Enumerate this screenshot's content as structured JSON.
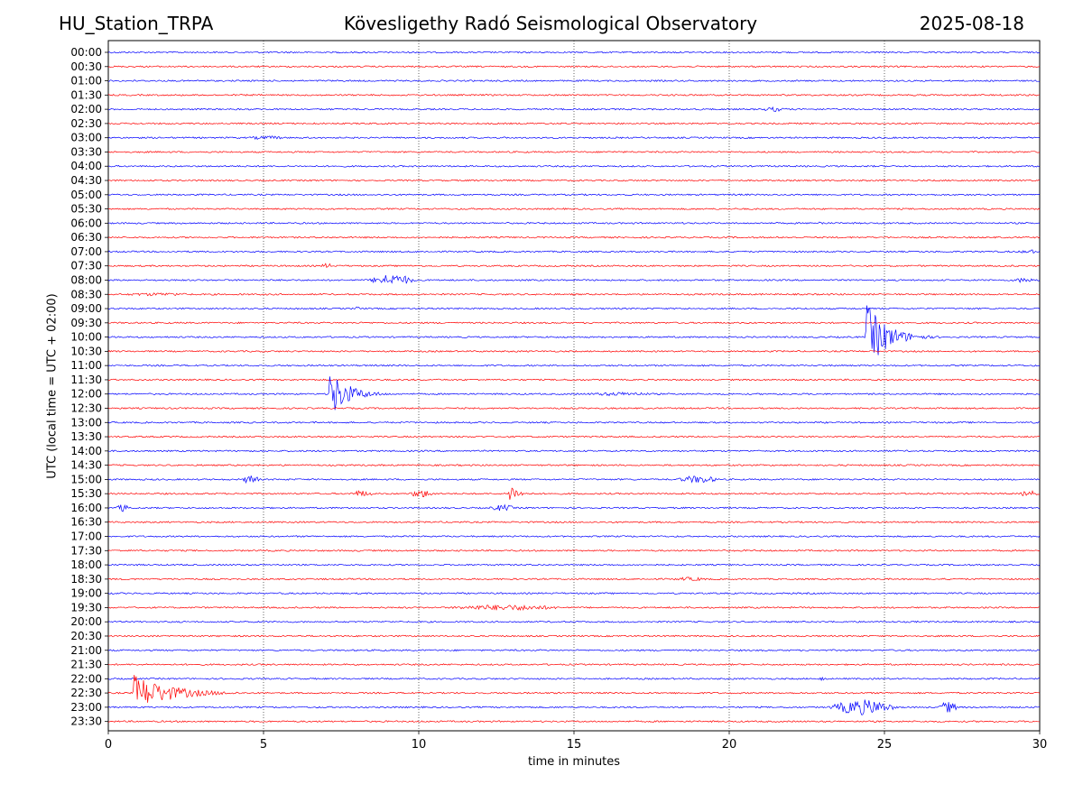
{
  "header": {
    "station": "HU_Station_TRPA",
    "title": "Kövesligethy Radó Seismological Observatory",
    "date": "2025-08-18"
  },
  "chart_data": {
    "type": "line",
    "title": "Kövesligethy Radó Seismological Observatory",
    "xlabel": "time in minutes",
    "ylabel": "UTC (local time = UTC + 02:00)",
    "xlim": [
      0,
      30
    ],
    "x_ticks": [
      "0",
      "5",
      "10",
      "15",
      "20",
      "25",
      "30"
    ],
    "grid": "vertical dotted at 5-minute intervals",
    "row_labels": [
      "00:00",
      "00:30",
      "01:00",
      "01:30",
      "02:00",
      "02:30",
      "03:00",
      "03:30",
      "04:00",
      "04:30",
      "05:00",
      "05:30",
      "06:00",
      "06:30",
      "07:00",
      "07:30",
      "08:00",
      "08:30",
      "09:00",
      "09:30",
      "10:00",
      "10:30",
      "11:00",
      "11:30",
      "12:00",
      "12:30",
      "13:00",
      "13:30",
      "14:00",
      "14:30",
      "15:00",
      "15:30",
      "16:00",
      "16:30",
      "17:00",
      "17:30",
      "18:00",
      "18:30",
      "19:00",
      "19:30",
      "20:00",
      "20:30",
      "21:00",
      "21:30",
      "22:00",
      "22:30",
      "23:00",
      "23:30"
    ],
    "row_colors": [
      "#0000ff",
      "#ff0000"
    ],
    "events": [
      {
        "row": "02:00",
        "start": 20.9,
        "end": 22.0,
        "amp": 0.35
      },
      {
        "row": "03:00",
        "start": 4.3,
        "end": 5.9,
        "amp": 0.3
      },
      {
        "row": "06:00",
        "start": 22.8,
        "end": 23.1,
        "amp": 0.35
      },
      {
        "row": "07:00",
        "start": 29.3,
        "end": 30.0,
        "amp": 0.35
      },
      {
        "row": "07:30",
        "start": 6.8,
        "end": 7.3,
        "amp": 0.4
      },
      {
        "row": "08:00",
        "start": 8.3,
        "end": 10.0,
        "amp": 0.9
      },
      {
        "row": "08:00",
        "start": 29.0,
        "end": 30.0,
        "amp": 0.4
      },
      {
        "row": "08:30",
        "start": 0.0,
        "end": 3.3,
        "amp": 0.25
      },
      {
        "row": "09:00",
        "start": 7.9,
        "end": 8.2,
        "amp": 0.35
      },
      {
        "row": "10:00",
        "start": 24.4,
        "end": 27.0,
        "amp": 5.5
      },
      {
        "row": "12:00",
        "start": 7.1,
        "end": 9.5,
        "amp": 4.0
      },
      {
        "row": "12:00",
        "start": 15.0,
        "end": 18.0,
        "amp": 0.3
      },
      {
        "row": "15:00",
        "start": 4.3,
        "end": 4.9,
        "amp": 0.8
      },
      {
        "row": "15:00",
        "start": 18.2,
        "end": 19.8,
        "amp": 0.6
      },
      {
        "row": "15:30",
        "start": 7.7,
        "end": 8.6,
        "amp": 0.5
      },
      {
        "row": "15:30",
        "start": 9.6,
        "end": 10.6,
        "amp": 0.6
      },
      {
        "row": "15:30",
        "start": 12.9,
        "end": 14.0,
        "amp": 1.8
      },
      {
        "row": "15:30",
        "start": 29.3,
        "end": 30.0,
        "amp": 0.5
      },
      {
        "row": "16:00",
        "start": 0.2,
        "end": 0.7,
        "amp": 0.6
      },
      {
        "row": "16:00",
        "start": 12.2,
        "end": 13.2,
        "amp": 0.5
      },
      {
        "row": "18:30",
        "start": 18.0,
        "end": 19.5,
        "amp": 0.3
      },
      {
        "row": "19:30",
        "start": 10.6,
        "end": 15.0,
        "amp": 0.45
      },
      {
        "row": "22:00",
        "start": 22.9,
        "end": 23.1,
        "amp": 0.5
      },
      {
        "row": "22:30",
        "start": 0.8,
        "end": 5.5,
        "amp": 3.0
      },
      {
        "row": "23:00",
        "start": 23.1,
        "end": 25.5,
        "amp": 1.2
      },
      {
        "row": "23:00",
        "start": 26.7,
        "end": 27.4,
        "amp": 0.9
      }
    ]
  }
}
